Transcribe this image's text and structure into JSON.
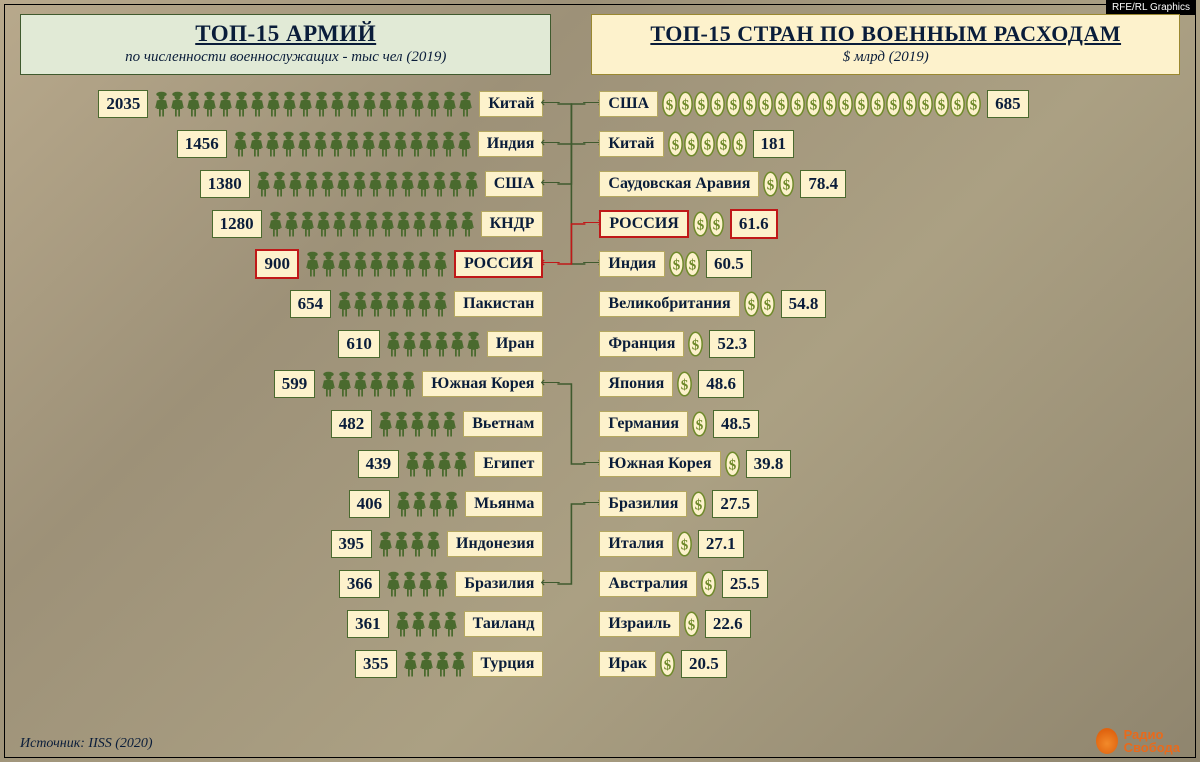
{
  "credit": "RFE/RL Graphics",
  "source": "Источник: IISS (2020)",
  "logo": {
    "line1": "Радио",
    "line2": "Свобода"
  },
  "colors": {
    "frame": "#000000",
    "title_text": "#0a1d3a",
    "green_bg": "#e1ead6",
    "green_border": "#3f5a2e",
    "cream_bg": "#fdf2cc",
    "cream_border": "#b5a860",
    "value_border": "#4a6a2e",
    "highlight": "#c01818",
    "soldier_fill": "#4a6a2e",
    "dollar_stroke": "#6f8a2a",
    "dollar_fill": "#fdf2cc"
  },
  "left": {
    "title": "ТОП-15 АРМИЙ",
    "subtitle": "по численности военнослужащих - тыс чел (2019)",
    "icon_unit": 100,
    "items": [
      {
        "country": "Китай",
        "value": 2035,
        "highlight": false,
        "link": true
      },
      {
        "country": "Индия",
        "value": 1456,
        "highlight": false,
        "link": true
      },
      {
        "country": "США",
        "value": 1380,
        "highlight": false,
        "link": true
      },
      {
        "country": "КНДР",
        "value": 1280,
        "highlight": false,
        "link": false
      },
      {
        "country": "РОССИЯ",
        "value": 900,
        "highlight": true,
        "link": true
      },
      {
        "country": "Пакистан",
        "value": 654,
        "highlight": false,
        "link": false
      },
      {
        "country": "Иран",
        "value": 610,
        "highlight": false,
        "link": false
      },
      {
        "country": "Южная Корея",
        "value": 599,
        "highlight": false,
        "link": true
      },
      {
        "country": "Вьетнам",
        "value": 482,
        "highlight": false,
        "link": false
      },
      {
        "country": "Египет",
        "value": 439,
        "highlight": false,
        "link": false
      },
      {
        "country": "Мьянма",
        "value": 406,
        "highlight": false,
        "link": false
      },
      {
        "country": "Индонезия",
        "value": 395,
        "highlight": false,
        "link": false
      },
      {
        "country": "Бразилия",
        "value": 366,
        "highlight": false,
        "link": true
      },
      {
        "country": "Таиланд",
        "value": 361,
        "highlight": false,
        "link": false
      },
      {
        "country": "Турция",
        "value": 355,
        "highlight": false,
        "link": false
      }
    ]
  },
  "right": {
    "title": "ТОП-15 СТРАН ПО ВОЕННЫМ РАСХОДАМ",
    "subtitle": "$ млрд (2019)",
    "icon_unit": 35,
    "items": [
      {
        "country": "США",
        "value": 685,
        "highlight": false
      },
      {
        "country": "Китай",
        "value": 181,
        "highlight": false
      },
      {
        "country": "Саудовская Аравия",
        "value": 78.4,
        "highlight": false
      },
      {
        "country": "РОССИЯ",
        "value": 61.6,
        "highlight": true
      },
      {
        "country": "Индия",
        "value": 60.5,
        "highlight": false
      },
      {
        "country": "Великобритания",
        "value": 54.8,
        "highlight": false
      },
      {
        "country": "Франция",
        "value": 52.3,
        "highlight": false
      },
      {
        "country": "Япония",
        "value": 48.6,
        "highlight": false
      },
      {
        "country": "Германия",
        "value": 48.5,
        "highlight": false
      },
      {
        "country": "Южная Корея",
        "value": 39.8,
        "highlight": false
      },
      {
        "country": "Бразилия",
        "value": 27.5,
        "highlight": false
      },
      {
        "country": "Италия",
        "value": 27.1,
        "highlight": false
      },
      {
        "country": "Австралия",
        "value": 25.5,
        "highlight": false
      },
      {
        "country": "Израиль",
        "value": 22.6,
        "highlight": false
      },
      {
        "country": "Ирак",
        "value": 20.5,
        "highlight": false
      }
    ]
  },
  "connections": [
    {
      "from": "Китай",
      "to": "Китай",
      "color": "#3f5a2e"
    },
    {
      "from": "Индия",
      "to": "Индия",
      "color": "#3f5a2e"
    },
    {
      "from": "США",
      "to": "США",
      "color": "#3f5a2e"
    },
    {
      "from": "РОССИЯ",
      "to": "РОССИЯ",
      "color": "#c01818"
    },
    {
      "from": "Южная Корея",
      "to": "Южная Корея",
      "color": "#3f5a2e"
    },
    {
      "from": "Бразилия",
      "to": "Бразилия",
      "color": "#3f5a2e"
    }
  ]
}
